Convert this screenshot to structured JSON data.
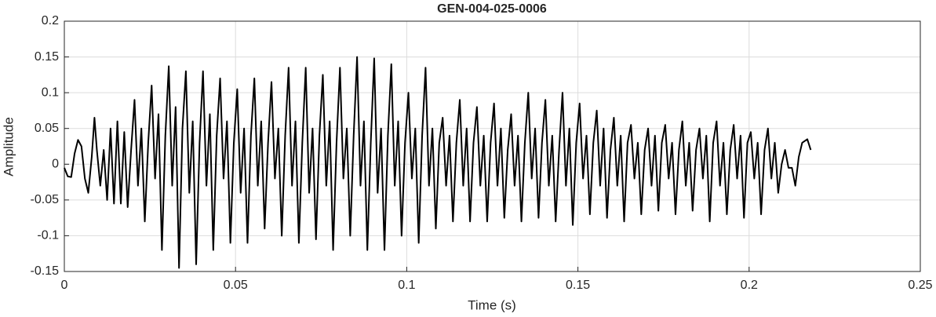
{
  "chart_data": {
    "type": "line",
    "title": "GEN-004-025-0006",
    "xlabel": "Time (s)",
    "ylabel": "Amplitude",
    "x": [
      0,
      0.001,
      0.002,
      0.003,
      0.004,
      0.005,
      0.006,
      0.007,
      0.008,
      0.0088,
      0.0095,
      0.0105,
      0.0115,
      0.0125,
      0.0135,
      0.0145,
      0.0155,
      0.0165,
      0.0175,
      0.0185,
      0.0195,
      0.0205,
      0.0215,
      0.0225,
      0.0235,
      0.0245,
      0.0255,
      0.0265,
      0.0275,
      0.0285,
      0.0295,
      0.0305,
      0.0315,
      0.0325,
      0.0335,
      0.0345,
      0.0355,
      0.0365,
      0.0375,
      0.0385,
      0.0395,
      0.0405,
      0.0415,
      0.0425,
      0.0435,
      0.0445,
      0.0455,
      0.0465,
      0.0475,
      0.0485,
      0.0495,
      0.0505,
      0.0515,
      0.0525,
      0.0535,
      0.0545,
      0.0555,
      0.0565,
      0.0575,
      0.0585,
      0.0595,
      0.0605,
      0.0615,
      0.0625,
      0.0635,
      0.0645,
      0.0655,
      0.0665,
      0.0675,
      0.0685,
      0.0695,
      0.0705,
      0.0715,
      0.0725,
      0.0735,
      0.0745,
      0.0755,
      0.0765,
      0.0775,
      0.0785,
      0.0795,
      0.0805,
      0.0815,
      0.0825,
      0.0835,
      0.0845,
      0.0855,
      0.0865,
      0.0875,
      0.0885,
      0.0895,
      0.0905,
      0.0915,
      0.0925,
      0.0935,
      0.0945,
      0.0955,
      0.0965,
      0.0975,
      0.0985,
      0.0995,
      0.1005,
      0.1015,
      0.1025,
      0.1035,
      0.1045,
      0.1055,
      0.1065,
      0.1075,
      0.1085,
      0.1095,
      0.1105,
      0.1115,
      0.1125,
      0.1135,
      0.1145,
      0.1155,
      0.1165,
      0.1175,
      0.1185,
      0.1195,
      0.1205,
      0.1215,
      0.1225,
      0.1235,
      0.1245,
      0.1255,
      0.1265,
      0.1275,
      0.1285,
      0.1295,
      0.1305,
      0.1315,
      0.1325,
      0.1335,
      0.1345,
      0.1355,
      0.1365,
      0.1375,
      0.1385,
      0.1395,
      0.1405,
      0.1415,
      0.1425,
      0.1435,
      0.1445,
      0.1455,
      0.1465,
      0.1475,
      0.1485,
      0.1495,
      0.1505,
      0.1515,
      0.1525,
      0.1535,
      0.1545,
      0.1555,
      0.1565,
      0.1575,
      0.1585,
      0.1595,
      0.1605,
      0.1615,
      0.1625,
      0.1635,
      0.1645,
      0.1655,
      0.1665,
      0.1675,
      0.1685,
      0.1695,
      0.1705,
      0.1715,
      0.1725,
      0.1735,
      0.1745,
      0.1755,
      0.1765,
      0.1775,
      0.1785,
      0.1795,
      0.1805,
      0.1815,
      0.1825,
      0.1835,
      0.1845,
      0.1855,
      0.1865,
      0.1875,
      0.1885,
      0.1895,
      0.1905,
      0.1915,
      0.1925,
      0.1935,
      0.1945,
      0.1955,
      0.1965,
      0.1975,
      0.1985,
      0.1995,
      0.2005,
      0.2015,
      0.2025,
      0.2035,
      0.2045,
      0.2055,
      0.2065,
      0.2075,
      0.2085,
      0.2095,
      0.2105,
      0.2115,
      0.2125,
      0.2135,
      0.2145,
      0.2155,
      0.217,
      0.218
    ],
    "series": [
      {
        "color": "#000000",
        "values": [
          -0.005,
          -0.017,
          -0.018,
          0.015,
          0.034,
          0.025,
          -0.02,
          -0.04,
          0.01,
          0.065,
          0.02,
          -0.03,
          0.02,
          -0.05,
          0.05,
          -0.055,
          0.06,
          -0.055,
          0.045,
          -0.06,
          0.02,
          0.09,
          -0.03,
          0.05,
          -0.08,
          0.03,
          0.11,
          -0.02,
          0.07,
          -0.12,
          0.04,
          0.137,
          -0.03,
          0.08,
          -0.145,
          0.05,
          0.13,
          -0.04,
          0.06,
          -0.14,
          0.03,
          0.13,
          -0.03,
          0.07,
          -0.12,
          0.04,
          0.12,
          -0.02,
          0.06,
          -0.11,
          0.03,
          0.105,
          -0.04,
          0.05,
          -0.11,
          0.04,
          0.12,
          -0.03,
          0.06,
          -0.09,
          0.03,
          0.115,
          -0.02,
          0.05,
          -0.1,
          0.04,
          0.135,
          -0.03,
          0.06,
          -0.11,
          0.03,
          0.135,
          -0.04,
          0.05,
          -0.105,
          0.04,
          0.125,
          -0.03,
          0.06,
          -0.12,
          0.03,
          0.135,
          -0.02,
          0.05,
          -0.1,
          0.04,
          0.15,
          -0.03,
          0.06,
          -0.12,
          0.03,
          0.148,
          -0.04,
          0.05,
          -0.12,
          0.04,
          0.14,
          -0.03,
          0.06,
          -0.1,
          0.03,
          0.1,
          -0.02,
          0.05,
          -0.11,
          0.04,
          0.135,
          -0.03,
          0.05,
          -0.09,
          0.03,
          0.065,
          -0.03,
          0.04,
          -0.08,
          0.03,
          0.09,
          -0.03,
          0.05,
          -0.08,
          0.03,
          0.08,
          -0.03,
          0.04,
          -0.08,
          0.03,
          0.085,
          -0.03,
          0.05,
          -0.075,
          0.02,
          0.07,
          -0.03,
          0.04,
          -0.08,
          0.03,
          0.1,
          -0.02,
          0.05,
          -0.075,
          0.03,
          0.09,
          -0.03,
          0.04,
          -0.08,
          0.02,
          0.1,
          -0.03,
          0.05,
          -0.085,
          0.03,
          0.085,
          -0.02,
          0.04,
          -0.07,
          0.03,
          0.075,
          -0.03,
          0.05,
          -0.075,
          0.02,
          0.065,
          -0.03,
          0.04,
          -0.08,
          0.03,
          0.055,
          -0.02,
          0.03,
          -0.07,
          0.02,
          0.05,
          -0.03,
          0.04,
          -0.065,
          0.03,
          0.055,
          -0.02,
          0.03,
          -0.07,
          0.02,
          0.06,
          -0.03,
          0.03,
          -0.065,
          0.02,
          0.05,
          -0.02,
          0.04,
          -0.08,
          0.03,
          0.06,
          -0.03,
          0.03,
          -0.07,
          0.02,
          0.055,
          -0.02,
          0.04,
          -0.075,
          0.03,
          0.045,
          -0.02,
          0.03,
          -0.07,
          0.02,
          0.05,
          -0.02,
          0.03,
          -0.04,
          0,
          0.02,
          -0.005,
          -0.005,
          -0.03,
          0.01,
          0.03,
          0.035,
          0.02
        ]
      }
    ],
    "xlim": [
      0,
      0.25
    ],
    "xticks": [
      0,
      0.05,
      0.1,
      0.15,
      0.2,
      0.25
    ],
    "ylim": [
      -0.15,
      0.2
    ],
    "yticks": [
      -0.15,
      -0.1,
      -0.05,
      0,
      0.05,
      0.1,
      0.15,
      0.2
    ],
    "grid": true
  }
}
